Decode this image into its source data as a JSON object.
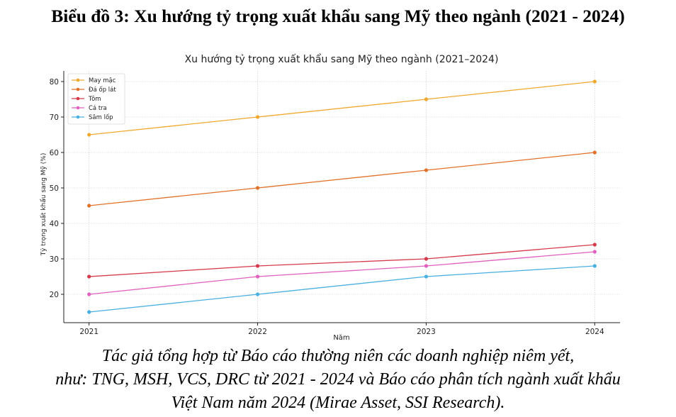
{
  "heading": "Biểu đồ 3: Xu hướng tỷ trọng xuất khẩu sang Mỹ theo ngành (2021 - 2024)",
  "caption_lines": [
    "Tác giả  tổng hợp từ Báo cáo thường niên các doanh nghiệp niêm yết,",
    "như: TNG, MSH, VCS, DRC từ 2021 - 2024 và Báo cáo phân tích ngành xuất khẩu",
    "Việt Nam năm 2024 (Mirae Asset, SSI Research)."
  ],
  "chart_data": {
    "type": "line",
    "title": "Xu hướng tỷ trọng xuất khẩu sang Mỹ theo ngành (2021–2024)",
    "xlabel": "Năm",
    "ylabel": "Tỷ trọng xuất khẩu sang Mỹ (%)",
    "x": [
      2021,
      2022,
      2023,
      2024
    ],
    "x_tick_labels": [
      "2021",
      "2022",
      "2023",
      "2024"
    ],
    "y_ticks": [
      20,
      30,
      40,
      50,
      60,
      70,
      80
    ],
    "ylim": [
      12,
      83
    ],
    "grid": true,
    "legend_position": "top-left",
    "series": [
      {
        "name": "May mặc",
        "color": "#f0a830",
        "values": [
          65,
          70,
          75,
          80
        ]
      },
      {
        "name": "Đá ốp lát",
        "color": "#e0722a",
        "values": [
          45,
          50,
          55,
          60
        ]
      },
      {
        "name": "Tôm",
        "color": "#d63a4a",
        "values": [
          25,
          28,
          30,
          34
        ]
      },
      {
        "name": "Cá tra",
        "color": "#e060c0",
        "values": [
          20,
          25,
          28,
          32
        ]
      },
      {
        "name": "Săm lốp",
        "color": "#4ab0e0",
        "values": [
          15,
          20,
          25,
          28
        ]
      }
    ]
  }
}
